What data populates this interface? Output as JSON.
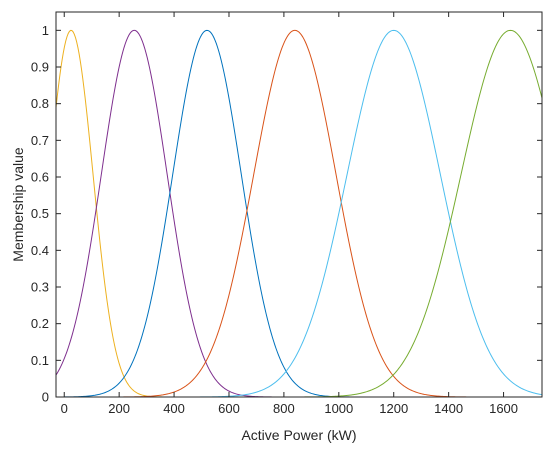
{
  "chart_data": {
    "type": "line",
    "title": "",
    "xlabel": "Active Power (kW)",
    "ylabel": "Membership value",
    "xlim": [
      -30,
      1740
    ],
    "ylim": [
      0,
      1.05
    ],
    "xticks": [
      0,
      200,
      400,
      600,
      800,
      1000,
      1200,
      1400,
      1600
    ],
    "xtick_labels": [
      "0",
      "200",
      "400",
      "600",
      "800",
      "1000",
      "1200",
      "1400",
      "1600"
    ],
    "yticks": [
      0,
      0.1,
      0.2,
      0.3,
      0.4,
      0.5,
      0.6,
      0.7,
      0.8,
      0.9,
      1
    ],
    "ytick_labels": [
      "0",
      "0.1",
      "0.2",
      "0.3",
      "0.4",
      "0.5",
      "0.6",
      "0.7",
      "0.8",
      "0.9",
      "1"
    ],
    "grid": false,
    "legend": "none",
    "curve_shape": "gaussian membership function",
    "series": [
      {
        "color": "#EDB120",
        "center": 25,
        "sigma": 80,
        "peak": 1
      },
      {
        "color": "#7E2F8E",
        "center": 255,
        "sigma": 120,
        "peak": 1
      },
      {
        "color": "#0072BD",
        "center": 520,
        "sigma": 125,
        "peak": 1
      },
      {
        "color": "#D95319",
        "center": 840,
        "sigma": 150,
        "peak": 1
      },
      {
        "color": "#4DBEEE",
        "center": 1200,
        "sigma": 170,
        "peak": 1
      },
      {
        "color": "#77AC30",
        "center": 1625,
        "sigma": 180,
        "peak": 1
      }
    ]
  }
}
